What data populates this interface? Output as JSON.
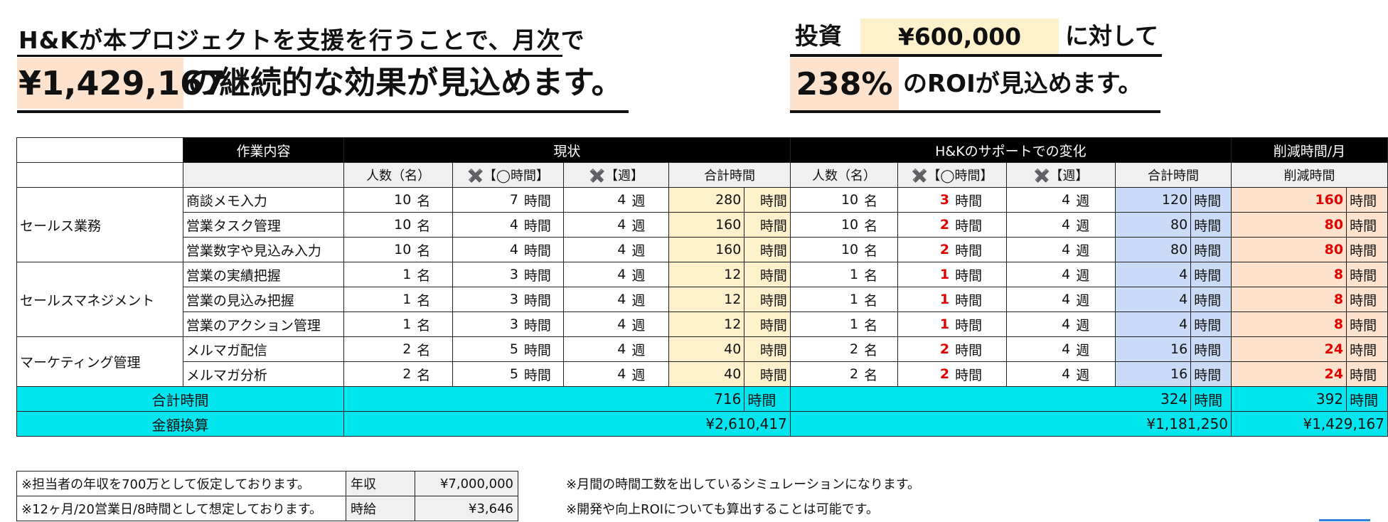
{
  "headline": {
    "line1": "H&Kが本プロジェクトを支援を行うことで、月次で",
    "monthly_effect": "¥1,429,167",
    "line2_suffix": "の継続的な効果が見込めます。",
    "investment_label": "投資",
    "investment_amount": "¥600,000",
    "investment_suffix": "に対して",
    "roi_value": "238%",
    "roi_suffix": "のROIが見込めます。"
  },
  "table": {
    "header_groups": {
      "task": "作業内容",
      "current": "現状",
      "after": "H&Kのサポートでの変化",
      "reduction": "削減時間/月"
    },
    "subheaders": {
      "people": "人数（名）",
      "hours": "✖️【◯時間】",
      "weeks": "✖️【週】",
      "total": "合計時間",
      "reduction": "削減時間"
    },
    "units": {
      "people": "名",
      "hours": "時間",
      "weeks": "週"
    },
    "categories": [
      {
        "name": "セールス業務",
        "rows": 3
      },
      {
        "name": "セールスマネジメント",
        "rows": 3
      },
      {
        "name": "マーケティング管理",
        "rows": 2
      }
    ],
    "rows": [
      {
        "task": "商談メモ入力",
        "cur_people": "10",
        "cur_hours": "7",
        "cur_weeks": "4",
        "cur_total": "280",
        "new_people": "10",
        "new_hours": "3",
        "new_weeks": "4",
        "new_total": "120",
        "reduced": "160"
      },
      {
        "task": "営業タスク管理",
        "cur_people": "10",
        "cur_hours": "4",
        "cur_weeks": "4",
        "cur_total": "160",
        "new_people": "10",
        "new_hours": "2",
        "new_weeks": "4",
        "new_total": "80",
        "reduced": "80"
      },
      {
        "task": "営業数字や見込み入力",
        "cur_people": "10",
        "cur_hours": "4",
        "cur_weeks": "4",
        "cur_total": "160",
        "new_people": "10",
        "new_hours": "2",
        "new_weeks": "4",
        "new_total": "80",
        "reduced": "80"
      },
      {
        "task": "営業の実績把握",
        "cur_people": "1",
        "cur_hours": "3",
        "cur_weeks": "4",
        "cur_total": "12",
        "new_people": "1",
        "new_hours": "1",
        "new_weeks": "4",
        "new_total": "4",
        "reduced": "8"
      },
      {
        "task": "営業の見込み把握",
        "cur_people": "1",
        "cur_hours": "3",
        "cur_weeks": "4",
        "cur_total": "12",
        "new_people": "1",
        "new_hours": "1",
        "new_weeks": "4",
        "new_total": "4",
        "reduced": "8"
      },
      {
        "task": "営業のアクション管理",
        "cur_people": "1",
        "cur_hours": "3",
        "cur_weeks": "4",
        "cur_total": "12",
        "new_people": "1",
        "new_hours": "1",
        "new_weeks": "4",
        "new_total": "4",
        "reduced": "8"
      },
      {
        "task": "メルマガ配信",
        "cur_people": "2",
        "cur_hours": "5",
        "cur_weeks": "4",
        "cur_total": "40",
        "new_people": "2",
        "new_hours": "2",
        "new_weeks": "4",
        "new_total": "16",
        "reduced": "24"
      },
      {
        "task": "メルマガ分析",
        "cur_people": "2",
        "cur_hours": "5",
        "cur_weeks": "4",
        "cur_total": "40",
        "new_people": "2",
        "new_hours": "2",
        "new_weeks": "4",
        "new_total": "16",
        "reduced": "24"
      }
    ],
    "totals": {
      "label": "合計時間",
      "current": "716",
      "after": "324",
      "reduced": "392"
    },
    "money": {
      "label": "金額換算",
      "current": "¥2,610,417",
      "after": "¥1,181,250",
      "reduced": "¥1,429,167"
    }
  },
  "footer": {
    "rows": [
      {
        "note": "※担当者の年収を700万として仮定しております。",
        "key": "年収",
        "value": "¥7,000,000"
      },
      {
        "note": "※12ヶ月/20営業日/8時間として想定しております。",
        "key": "時給",
        "value": "¥3,646"
      }
    ],
    "notes": [
      "※月間の時間工数を出しているシミュレーションになります。",
      "※開発や向上ROIについても算出することは可能です。"
    ]
  }
}
